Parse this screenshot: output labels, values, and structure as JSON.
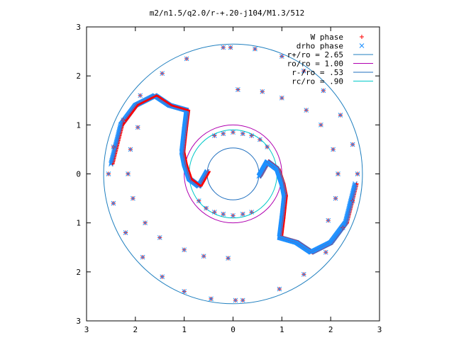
{
  "chart_data": {
    "type": "scatter",
    "title": "m2/n1.5/q2.0/r-+.20-j104/M1.3/512",
    "xlabel": "",
    "ylabel": "",
    "xlim": [
      -3,
      3
    ],
    "ylim": [
      -3,
      3
    ],
    "x_tick_labels": [
      "3",
      "2",
      "1",
      "0",
      "1",
      "2",
      "3"
    ],
    "y_tick_labels": [
      "3",
      "2",
      "1",
      "0",
      "1",
      "2",
      "3"
    ],
    "legend_position": "top-right",
    "grid": false,
    "series": [
      {
        "name": "W phase",
        "marker": "plus",
        "color": "#ff0000"
      },
      {
        "name": "drho phase",
        "marker": "cross",
        "color": "#1e90ff"
      }
    ],
    "circles": [
      {
        "name": "r+/ro = 2.65",
        "radius": 2.65,
        "color": "#1f7fbf"
      },
      {
        "name": "ro/ro = 1.00",
        "radius": 1.0,
        "color": "#b000b0"
      },
      {
        "name": "r-/ro = .53",
        "radius": 0.53,
        "color": "#1f6fbf"
      },
      {
        "name": "rc/ro = .90",
        "radius": 0.9,
        "color": "#00c8c8"
      }
    ],
    "spirals": [
      {
        "points": [
          [
            0.53,
            -0.05
          ],
          [
            0.7,
            0.25
          ],
          [
            0.9,
            0.1
          ],
          [
            1.0,
            -0.2
          ],
          [
            1.05,
            -0.45
          ]
        ]
      },
      {
        "points": [
          [
            1.05,
            -0.45
          ],
          [
            1.0,
            -0.9
          ],
          [
            0.95,
            -1.3
          ],
          [
            1.3,
            -1.4
          ],
          [
            1.6,
            -1.6
          ],
          [
            2.0,
            -1.4
          ],
          [
            2.3,
            -1.0
          ],
          [
            2.5,
            -0.2
          ]
        ]
      },
      {
        "points": [
          [
            -0.53,
            0.05
          ],
          [
            -0.7,
            -0.25
          ],
          [
            -0.9,
            -0.1
          ],
          [
            -1.0,
            0.2
          ],
          [
            -1.05,
            0.45
          ]
        ]
      },
      {
        "points": [
          [
            -1.05,
            0.45
          ],
          [
            -1.0,
            0.9
          ],
          [
            -0.95,
            1.3
          ],
          [
            -1.3,
            1.4
          ],
          [
            -1.6,
            1.6
          ],
          [
            -2.0,
            1.4
          ],
          [
            -2.3,
            1.0
          ],
          [
            -2.5,
            0.2
          ]
        ]
      }
    ],
    "scatter_points": [
      [
        0.0,
        0.85
      ],
      [
        0.2,
        0.82
      ],
      [
        0.38,
        0.78
      ],
      [
        -0.2,
        0.82
      ],
      [
        -0.38,
        0.78
      ],
      [
        0.0,
        -0.85
      ],
      [
        -0.2,
        -0.82
      ],
      [
        -0.38,
        -0.78
      ],
      [
        0.2,
        -0.82
      ],
      [
        0.38,
        -0.78
      ],
      [
        0.55,
        0.7
      ],
      [
        0.7,
        0.55
      ],
      [
        -0.55,
        -0.7
      ],
      [
        -0.7,
        -0.55
      ],
      [
        -0.05,
        2.58
      ],
      [
        0.45,
        2.55
      ],
      [
        1.0,
        2.4
      ],
      [
        1.45,
        2.1
      ],
      [
        1.85,
        1.7
      ],
      [
        2.2,
        1.2
      ],
      [
        2.45,
        0.6
      ],
      [
        2.55,
        0.0
      ],
      [
        2.45,
        -0.55
      ],
      [
        2.25,
        -1.1
      ],
      [
        1.9,
        -1.6
      ],
      [
        1.45,
        -2.05
      ],
      [
        0.95,
        -2.35
      ],
      [
        0.2,
        -2.58
      ],
      [
        0.05,
        -2.58
      ],
      [
        -0.45,
        -2.55
      ],
      [
        -1.0,
        -2.4
      ],
      [
        -1.45,
        -2.1
      ],
      [
        -1.85,
        -1.7
      ],
      [
        -2.2,
        -1.2
      ],
      [
        -2.45,
        -0.6
      ],
      [
        -2.55,
        0.0
      ],
      [
        -2.45,
        0.55
      ],
      [
        -2.25,
        1.1
      ],
      [
        -1.9,
        1.6
      ],
      [
        -1.45,
        2.05
      ],
      [
        -0.95,
        2.35
      ],
      [
        -0.2,
        2.58
      ],
      [
        0.1,
        1.72
      ],
      [
        0.6,
        1.68
      ],
      [
        1.0,
        1.55
      ],
      [
        1.5,
        1.3
      ],
      [
        1.8,
        1.0
      ],
      [
        2.05,
        0.5
      ],
      [
        2.15,
        0.0
      ],
      [
        2.1,
        -0.5
      ],
      [
        1.95,
        -0.95
      ],
      [
        -0.1,
        -1.72
      ],
      [
        -0.6,
        -1.68
      ],
      [
        -1.0,
        -1.55
      ],
      [
        -1.5,
        -1.3
      ],
      [
        -1.8,
        -1.0
      ],
      [
        -2.05,
        -0.5
      ],
      [
        -2.15,
        0.0
      ],
      [
        -2.1,
        0.5
      ],
      [
        -1.95,
        0.95
      ]
    ]
  }
}
